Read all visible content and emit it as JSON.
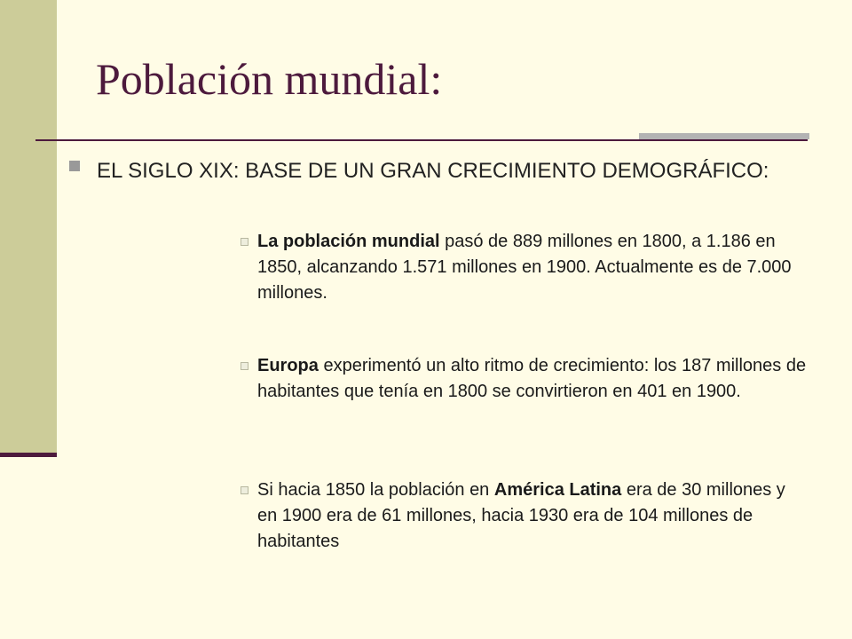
{
  "slide": {
    "title": "Población mundial:",
    "heading": "EL SIGLO XIX: BASE DE UN GRAN CRECIMIENTO DEMOGRÁFICO:",
    "points": [
      {
        "bold": "La población mundial",
        "before": "",
        "after": " pasó de 889 millones en 1800, a 1.186 en 1850, alcanzando 1.571 millones en 1900. Actualmente es de 7.000 millones."
      },
      {
        "bold": "Europa",
        "before": "",
        "after": " experimentó un alto ritmo de crecimiento: los 187 millones de habitantes que tenía en 1800 se convirtieron en 401 en 1900."
      },
      {
        "bold": "América Latina",
        "before": "Si hacia 1850 la población en ",
        "after": " era de 30 millones y en 1900 era de 61 millones, hacia 1930 era de 104 millones de habitantes"
      }
    ]
  }
}
